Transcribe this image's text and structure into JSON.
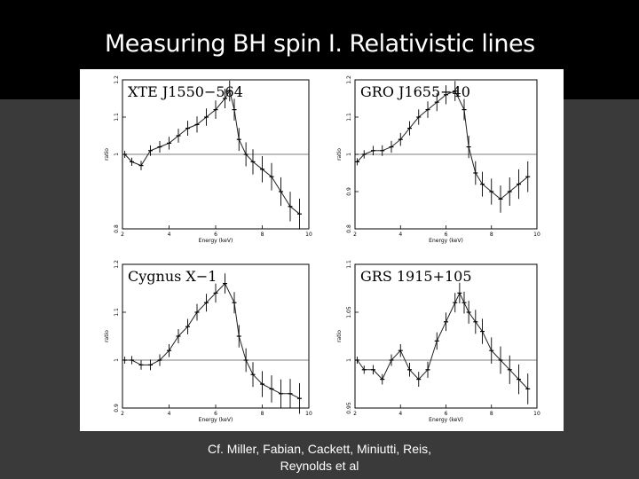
{
  "slide": {
    "title": "Measuring BH spin I. Relativistic lines",
    "caption_line1": "Cf. Miller, Fabian, Cackett, Miniutti, Reis,",
    "caption_line2": "Reynolds et al"
  },
  "chart_data": [
    {
      "type": "scatter",
      "label": "XTE J1550−564",
      "xlabel": "Energy (keV)",
      "ylabel": "ratio",
      "xlim": [
        2,
        10
      ],
      "ylim": [
        0.8,
        1.2
      ],
      "xticks": [
        "2",
        "4",
        "6",
        "8",
        "10"
      ],
      "yticks": [
        "0.8",
        "1",
        "1.1",
        "1.2"
      ],
      "reference_line": 1,
      "x": [
        2.1,
        2.4,
        2.8,
        3.2,
        3.6,
        4.0,
        4.4,
        4.8,
        5.2,
        5.6,
        6.0,
        6.4,
        6.6,
        6.8,
        7.0,
        7.3,
        7.6,
        8.0,
        8.4,
        8.8,
        9.2,
        9.6
      ],
      "y": [
        1.0,
        0.98,
        0.97,
        1.01,
        1.02,
        1.03,
        1.05,
        1.07,
        1.08,
        1.1,
        1.12,
        1.15,
        1.17,
        1.12,
        1.04,
        1.0,
        0.98,
        0.96,
        0.94,
        0.9,
        0.86,
        0.84
      ]
    },
    {
      "type": "scatter",
      "label": "GRO J1655−40",
      "xlabel": "Energy (keV)",
      "ylabel": "ratio",
      "xlim": [
        2,
        10
      ],
      "ylim": [
        0.8,
        1.2
      ],
      "xticks": [
        "2",
        "4",
        "6",
        "8",
        "10"
      ],
      "yticks": [
        "0.8",
        "0.9",
        "1",
        "1.1",
        "1.2"
      ],
      "reference_line": 1,
      "x": [
        2.1,
        2.4,
        2.8,
        3.2,
        3.6,
        4.0,
        4.4,
        4.8,
        5.2,
        5.6,
        6.0,
        6.4,
        6.8,
        7.0,
        7.3,
        7.6,
        8.0,
        8.4,
        8.8,
        9.2,
        9.6
      ],
      "y": [
        0.98,
        1.0,
        1.01,
        1.01,
        1.02,
        1.04,
        1.07,
        1.1,
        1.12,
        1.14,
        1.16,
        1.17,
        1.12,
        1.02,
        0.95,
        0.92,
        0.9,
        0.88,
        0.9,
        0.92,
        0.94
      ]
    },
    {
      "type": "scatter",
      "label": "Cygnus X−1",
      "xlabel": "Energy (keV)",
      "ylabel": "ratio",
      "xlim": [
        2,
        10
      ],
      "ylim": [
        0.9,
        1.2
      ],
      "xticks": [
        "2",
        "4",
        "6",
        "8",
        "10"
      ],
      "yticks": [
        "0.9",
        "1",
        "1.1",
        "1.2"
      ],
      "reference_line": 1,
      "x": [
        2.1,
        2.4,
        2.8,
        3.2,
        3.6,
        4.0,
        4.4,
        4.8,
        5.2,
        5.6,
        6.0,
        6.4,
        6.8,
        7.0,
        7.3,
        7.6,
        8.0,
        8.4,
        8.8,
        9.2,
        9.6
      ],
      "y": [
        1.0,
        1.0,
        0.99,
        0.99,
        1.0,
        1.02,
        1.05,
        1.07,
        1.1,
        1.12,
        1.14,
        1.16,
        1.12,
        1.05,
        1.0,
        0.97,
        0.95,
        0.94,
        0.93,
        0.93,
        0.92
      ]
    },
    {
      "type": "scatter",
      "label": "GRS 1915+105",
      "xlabel": "Energy (keV)",
      "ylabel": "ratio",
      "xlim": [
        2,
        10
      ],
      "ylim": [
        0.95,
        1.1
      ],
      "xticks": [
        "2",
        "4",
        "6",
        "8",
        "10"
      ],
      "yticks": [
        "0.95",
        "1",
        "1.05",
        "1.1"
      ],
      "reference_line": 1,
      "x": [
        2.1,
        2.4,
        2.8,
        3.2,
        3.6,
        4.0,
        4.4,
        4.8,
        5.2,
        5.6,
        6.0,
        6.4,
        6.6,
        6.8,
        7.0,
        7.3,
        7.6,
        8.0,
        8.4,
        8.8,
        9.2,
        9.6
      ],
      "y": [
        1.0,
        0.99,
        0.99,
        0.98,
        1.0,
        1.01,
        0.99,
        0.98,
        0.99,
        1.02,
        1.04,
        1.06,
        1.07,
        1.06,
        1.05,
        1.04,
        1.03,
        1.01,
        1.0,
        0.99,
        0.98,
        0.97
      ]
    }
  ]
}
